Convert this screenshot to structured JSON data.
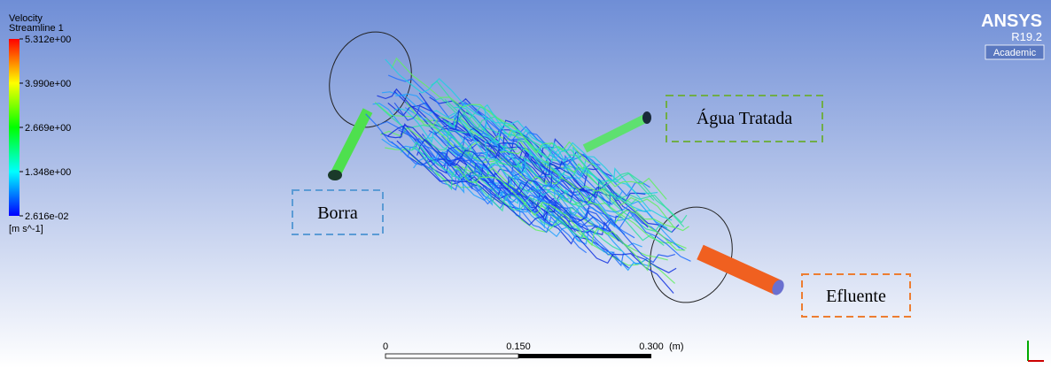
{
  "legend": {
    "title": "Velocity",
    "subtitle": "Streamline 1",
    "ticks": [
      "5.312e+00",
      "3.990e+00",
      "2.669e+00",
      "1.348e+00",
      "2.616e-02"
    ],
    "unit": "[m s^-1]"
  },
  "logo": {
    "name": "ANSYS",
    "version": "R19.2",
    "edition": "Academic"
  },
  "labels": {
    "borra": "Borra",
    "agua": "Água Tratada",
    "efluente": "Efluente"
  },
  "scale": {
    "ticks": [
      "0",
      "0.150",
      "0.300"
    ],
    "unit": "(m)"
  }
}
